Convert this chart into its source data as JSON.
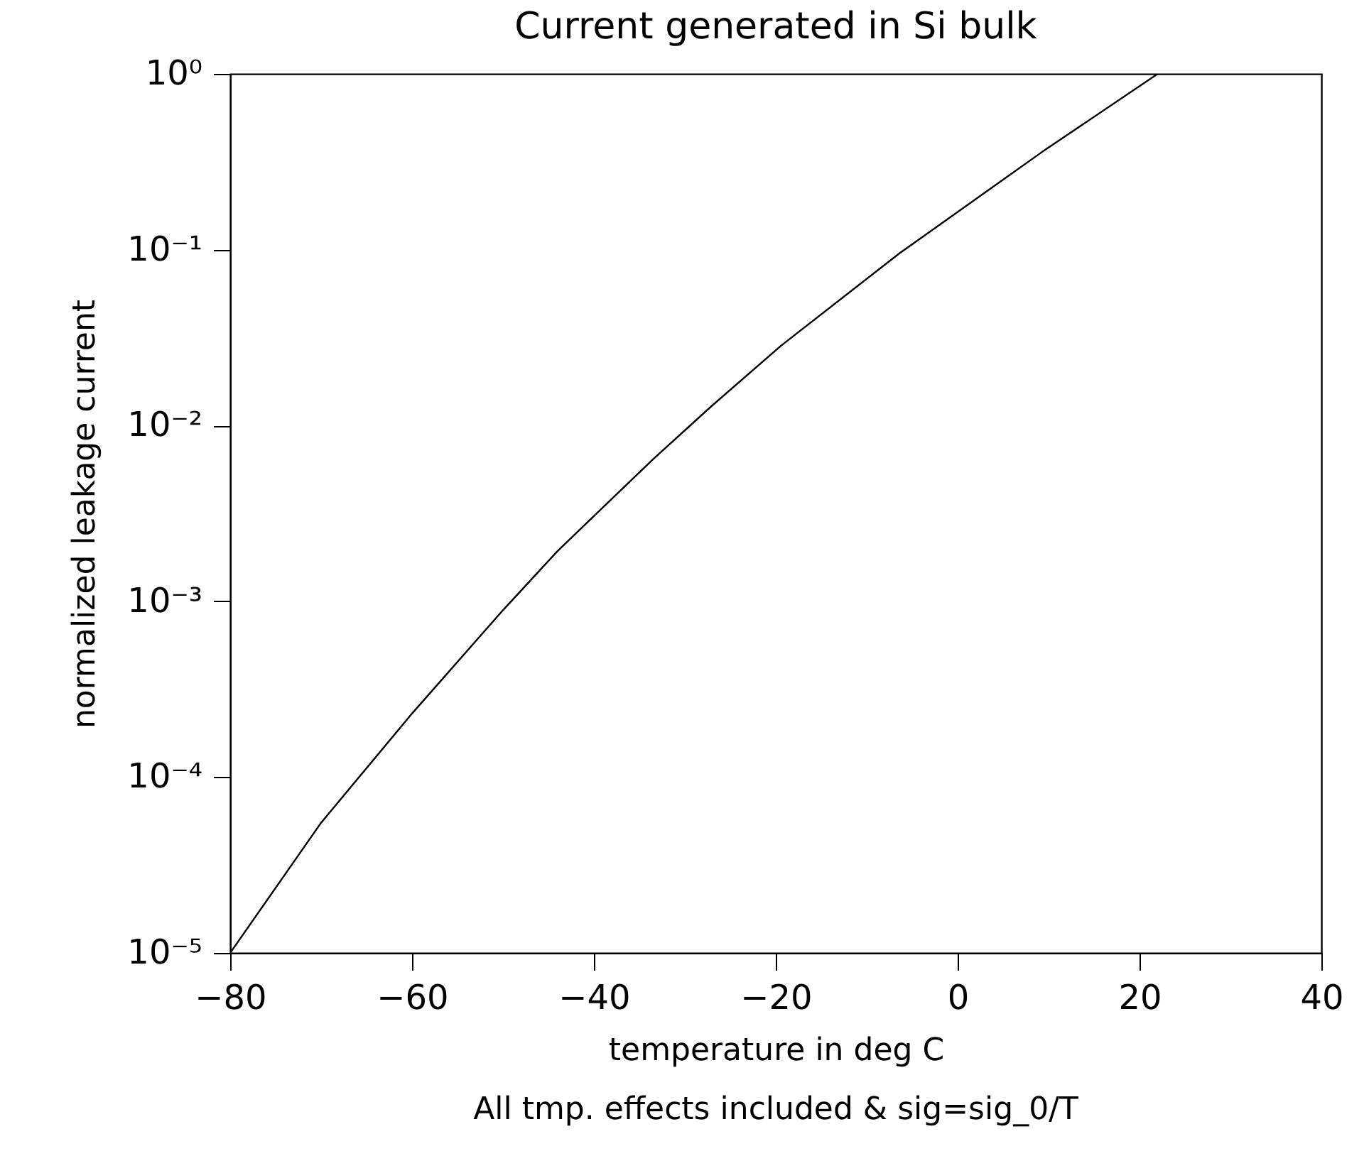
{
  "chart_data": {
    "type": "line",
    "title": "Current generated in Si bulk",
    "xlabel": "temperature in deg C",
    "ylabel": "normalized leakage current",
    "annotations": [
      "All tmp. effects included & sig=sig_0/T"
    ],
    "x": [
      -80,
      -70,
      -60,
      -50,
      -44,
      -39.4,
      -33.4,
      -27.2,
      -19.4,
      -6.4,
      9.3,
      22
    ],
    "series": [
      {
        "color": "#000000",
        "values": [
          1e-05,
          5.5e-05,
          0.00023,
          0.00089,
          0.00193,
          0.00327,
          0.0065,
          0.0127,
          0.0285,
          0.0953,
          0.36,
          1.0
        ]
      }
    ],
    "xlim": [
      -80,
      40
    ],
    "xticks": [
      -80,
      -60,
      -40,
      -20,
      0,
      20,
      40
    ],
    "ylim": [
      1e-05,
      1
    ],
    "yticks": [
      {
        "value": 1e-05,
        "label": "10⁻⁵"
      },
      {
        "value": 0.0001,
        "label": "10⁻⁴"
      },
      {
        "value": 0.001,
        "label": "10⁻³"
      },
      {
        "value": 0.01,
        "label": "10⁻²"
      },
      {
        "value": 0.1,
        "label": "10⁻¹"
      },
      {
        "value": 1,
        "label": "10⁰"
      }
    ],
    "log": "y",
    "grid": false,
    "marker": "none",
    "line_style": "solid"
  }
}
